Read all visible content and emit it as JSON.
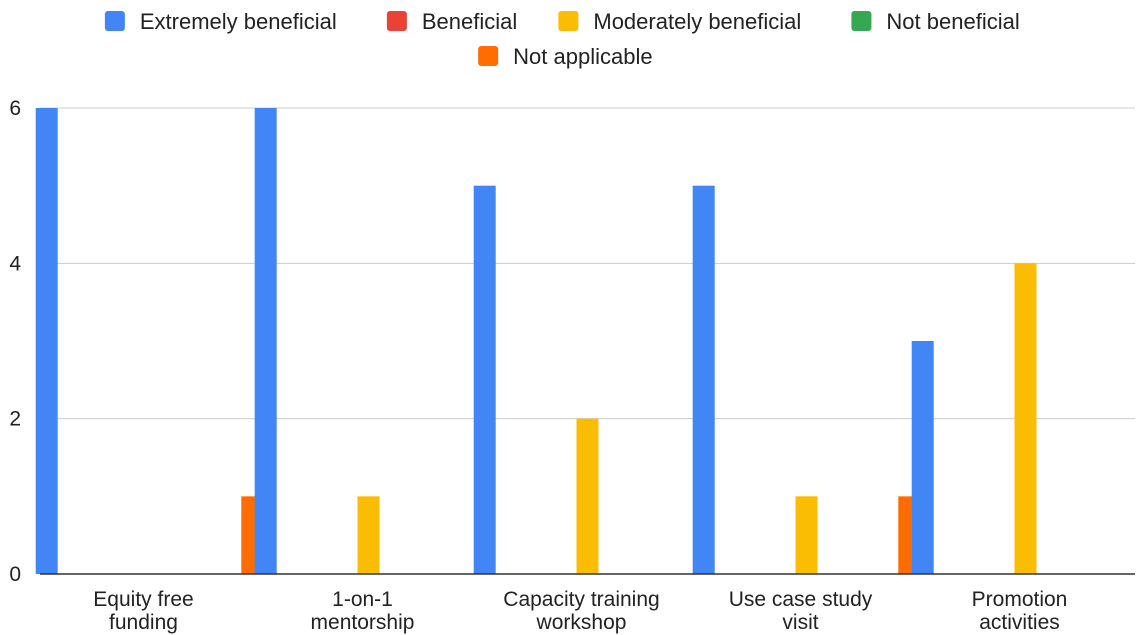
{
  "chart_data": {
    "type": "bar",
    "categories": [
      [
        "Equity free",
        "funding"
      ],
      [
        "1-on-1",
        "mentorship"
      ],
      [
        "Capacity training",
        "workshop"
      ],
      [
        "Use case study",
        "visit"
      ],
      [
        "Promotion",
        "activities"
      ]
    ],
    "series": [
      {
        "name": "Extremely beneficial",
        "color": "#4285f4",
        "values": [
          6,
          6,
          5,
          5,
          3
        ]
      },
      {
        "name": "Beneficial",
        "color": "#ea4335",
        "values": [
          0,
          0,
          0,
          0,
          0
        ]
      },
      {
        "name": "Moderately beneficial",
        "color": "#fbbc04",
        "values": [
          0,
          1,
          2,
          1,
          4
        ]
      },
      {
        "name": "Not beneficial",
        "color": "#34a853",
        "values": [
          0,
          0,
          0,
          0,
          0
        ]
      },
      {
        "name": "Not applicable",
        "color": "#ff6d01",
        "values": [
          1,
          0,
          0,
          1,
          0
        ]
      }
    ],
    "y_ticks": [
      "0",
      "2",
      "4",
      "6"
    ],
    "ylim": [
      0,
      6
    ],
    "grid": true,
    "legend_position": "top"
  }
}
